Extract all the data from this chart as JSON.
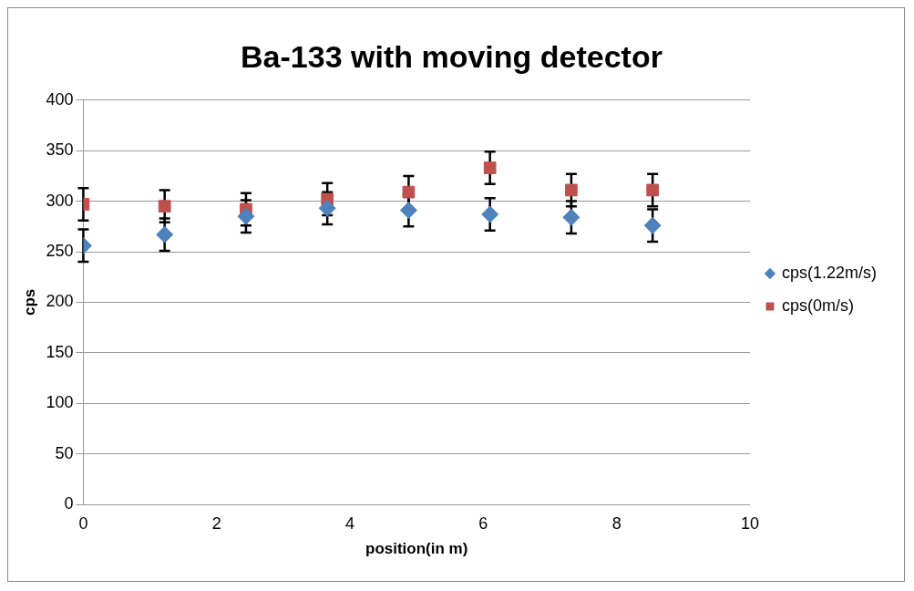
{
  "chart_data": {
    "type": "scatter",
    "title": "Ba-133 with moving detector",
    "xlabel": "position(in m)",
    "ylabel": "cps",
    "xlim": [
      0,
      10
    ],
    "xticks": [
      0,
      2,
      4,
      6,
      8,
      10
    ],
    "ylim": [
      0,
      400
    ],
    "yticks": [
      0,
      50,
      100,
      150,
      200,
      250,
      300,
      350,
      400
    ],
    "grid": "y",
    "legend": "right",
    "x": [
      0,
      1.22,
      2.44,
      3.66,
      4.88,
      6.1,
      7.32,
      8.54
    ],
    "series": [
      {
        "name": "cps(1.22m/s)",
        "color": "#4f81bd",
        "marker": "diamond",
        "values": [
          256,
          267,
          285,
          293,
          291,
          287,
          284,
          276
        ],
        "errors": [
          16,
          16,
          16,
          16,
          16,
          16,
          16,
          16
        ]
      },
      {
        "name": "cps(0m/s)",
        "color": "#c0504d",
        "marker": "square",
        "values": [
          297,
          295,
          292,
          302,
          309,
          333,
          311,
          311
        ],
        "errors": [
          16,
          16,
          16,
          16,
          16,
          16,
          16,
          16
        ]
      }
    ]
  }
}
